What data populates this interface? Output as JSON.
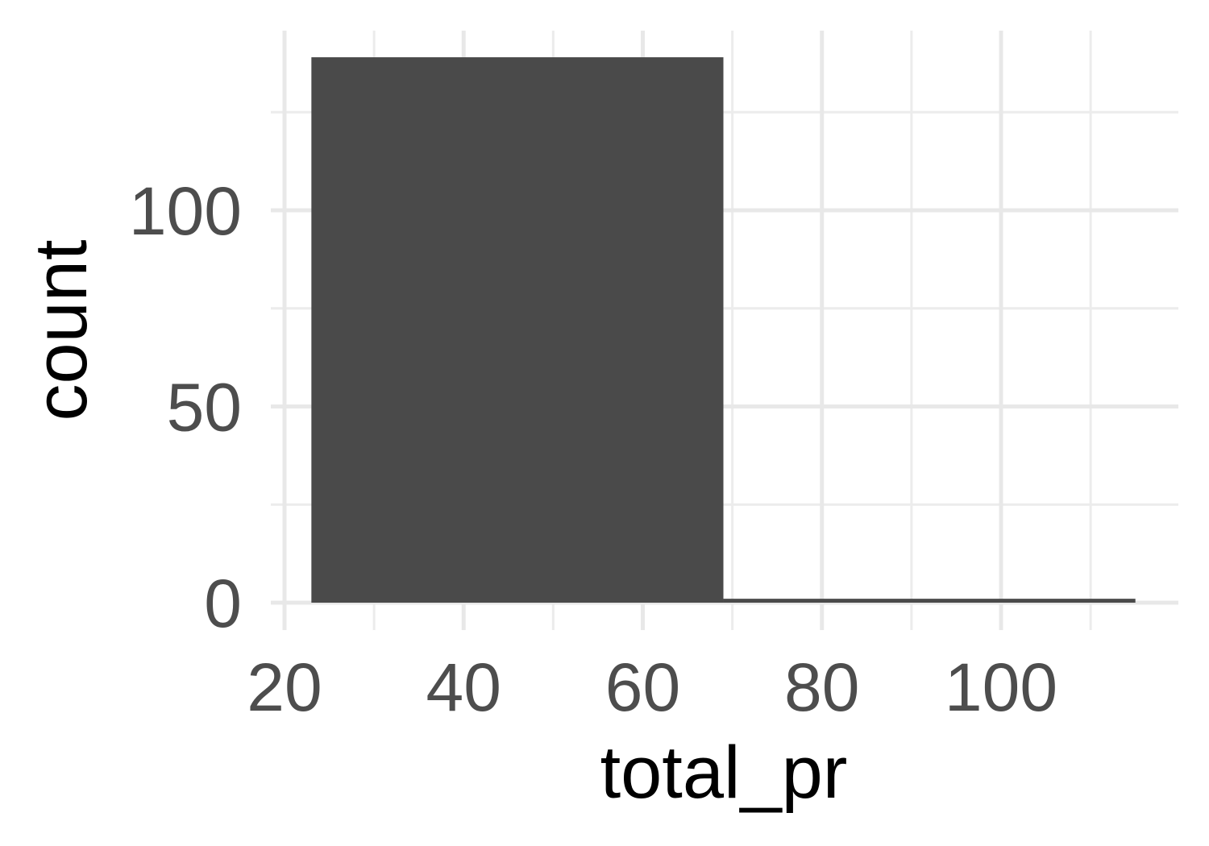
{
  "chart_data": {
    "type": "bar",
    "title": "",
    "xlabel": "total_pr",
    "ylabel": "count",
    "bins": [
      {
        "x0": 23,
        "x1": 69,
        "count": 139
      },
      {
        "x0": 69,
        "x1": 115,
        "count": 1
      }
    ],
    "xlim": [
      20,
      115
    ],
    "ylim": [
      0,
      140
    ],
    "x_ticks": [
      20,
      40,
      60,
      80,
      100
    ],
    "y_ticks": [
      0,
      50,
      100
    ],
    "x_tick_labels": [
      "20",
      "40",
      "60",
      "80",
      "100"
    ],
    "y_tick_labels": [
      "0",
      "50",
      "100"
    ],
    "bar_color": "#4a4a4a",
    "grid": true,
    "legend": "none"
  }
}
